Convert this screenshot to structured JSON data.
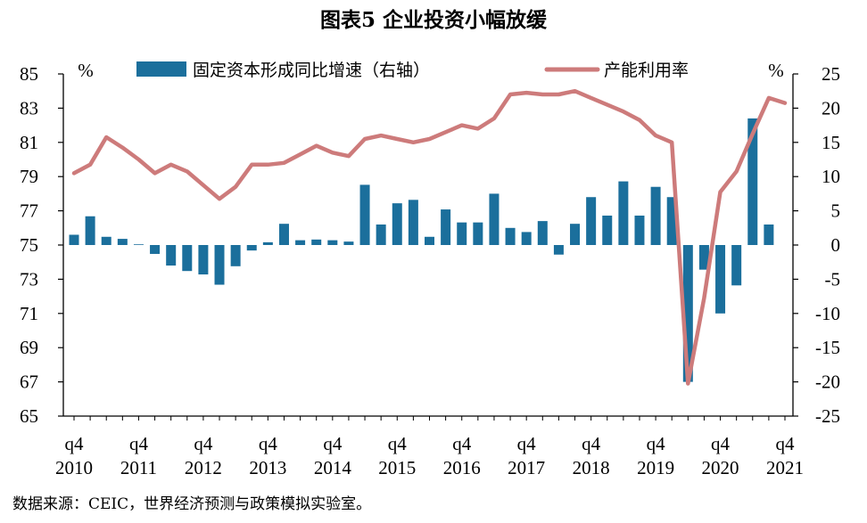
{
  "title": "图表5 企业投资小幅放缓",
  "source": "数据来源：CEIC，世界经济预测与政策模拟实验室。",
  "chart_data": {
    "type": "bar+line",
    "title": "图表5 企业投资小幅放缓",
    "left_unit": "%",
    "right_unit": "%",
    "left_axis": {
      "min": 65,
      "max": 85,
      "ticks": [
        85,
        83,
        81,
        79,
        77,
        75,
        73,
        71,
        69,
        67,
        65
      ]
    },
    "right_axis": {
      "min": -25,
      "max": 25,
      "ticks": [
        25,
        20,
        15,
        10,
        5,
        0,
        -5,
        -10,
        -15,
        -20,
        -25
      ]
    },
    "x_labels": [
      {
        "q": "q4",
        "year": "2010",
        "index": 0
      },
      {
        "q": "q4",
        "year": "2011",
        "index": 4
      },
      {
        "q": "q4",
        "year": "2012",
        "index": 8
      },
      {
        "q": "q4",
        "year": "2013",
        "index": 12
      },
      {
        "q": "q4",
        "year": "2014",
        "index": 16
      },
      {
        "q": "q4",
        "year": "2015",
        "index": 20
      },
      {
        "q": "q4",
        "year": "2016",
        "index": 24
      },
      {
        "q": "q4",
        "year": "2017",
        "index": 28
      },
      {
        "q": "q4",
        "year": "2018",
        "index": 32
      },
      {
        "q": "q4",
        "year": "2019",
        "index": 36
      },
      {
        "q": "q4",
        "year": "2020",
        "index": 40
      },
      {
        "q": "q4",
        "year": "2021",
        "index": 44
      }
    ],
    "n_points": 45,
    "series": [
      {
        "name": "固定资本形成同比增速（右轴）",
        "type": "bar",
        "axis": "right",
        "color": "#1b6f9c",
        "values": [
          1.5,
          4.2,
          1.2,
          0.9,
          0.1,
          -1.3,
          -3.0,
          -3.8,
          -4.3,
          -5.8,
          -3.1,
          -0.8,
          0.4,
          3.1,
          0.7,
          0.8,
          0.7,
          0.5,
          8.8,
          3.0,
          6.1,
          6.6,
          1.2,
          5.2,
          3.3,
          3.3,
          7.5,
          2.5,
          1.9,
          3.5,
          -1.4,
          3.1,
          7.0,
          4.3,
          9.3,
          4.3,
          8.5,
          7.0,
          -20.0,
          -3.6,
          -10.0,
          -5.9,
          18.5,
          3.0,
          null
        ]
      },
      {
        "name": "产能利用率",
        "type": "line",
        "axis": "left",
        "color": "#cd7b7b",
        "values": [
          79.2,
          79.7,
          81.3,
          80.7,
          80.0,
          79.2,
          79.7,
          79.3,
          78.5,
          77.7,
          78.4,
          79.7,
          79.7,
          79.8,
          80.3,
          80.8,
          80.4,
          80.2,
          81.2,
          81.4,
          81.2,
          81.0,
          81.2,
          81.6,
          82.0,
          81.8,
          82.4,
          83.8,
          83.9,
          83.8,
          83.8,
          84.0,
          83.6,
          83.2,
          82.8,
          82.3,
          81.4,
          81.0,
          66.9,
          71.9,
          78.1,
          79.3,
          81.5,
          83.6,
          83.3
        ]
      }
    ],
    "legend": [
      "固定资本形成同比增速（右轴）",
      "产能利用率"
    ],
    "legend_position": "top",
    "grid": false
  }
}
